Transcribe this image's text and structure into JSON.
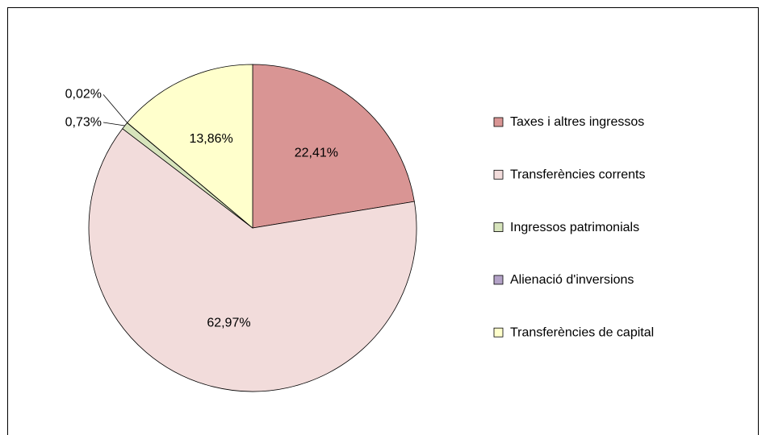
{
  "chart_data": {
    "type": "pie",
    "categories": [
      "Taxes i altres ingressos",
      "Transferències corrents",
      "Ingressos patrimonials",
      "Alienació d'inversions",
      "Transferències de capital"
    ],
    "values": [
      22.41,
      62.97,
      0.73,
      0.02,
      13.86
    ],
    "value_labels": [
      "22,41%",
      "62,97%",
      "0,73%",
      "0,02%",
      "13,86%"
    ],
    "colors": [
      "#d99594",
      "#f2dcdb",
      "#d7e4bc",
      "#b3a2c7",
      "#ffffcc"
    ],
    "legend": "right"
  }
}
